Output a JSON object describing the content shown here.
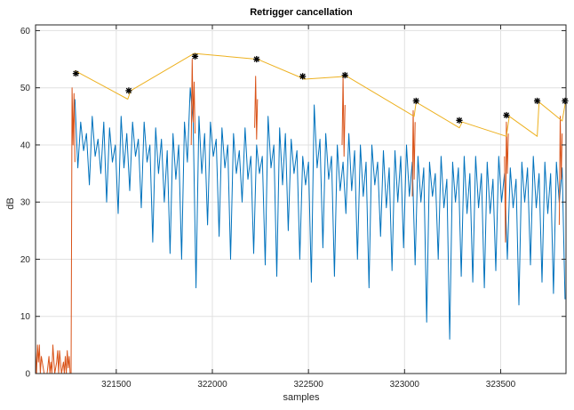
{
  "chart_data": {
    "type": "line",
    "title": "Retrigger cancellation",
    "xlabel": "samples",
    "ylabel": "dB",
    "xlim": [
      321080,
      323840
    ],
    "ylim": [
      0,
      61
    ],
    "xticks": [
      321500,
      322000,
      322500,
      323000,
      323500
    ],
    "xtick_labels": [
      "321500",
      "322000",
      "322500",
      "323000",
      "323500"
    ],
    "yticks": [
      0,
      10,
      20,
      30,
      40,
      50,
      60
    ],
    "ytick_labels": [
      "0",
      "10",
      "20",
      "30",
      "40",
      "50",
      "60"
    ],
    "grid": true,
    "colors": {
      "signal": "#0072bd",
      "triggered": "#d95319",
      "envelope": "#edb120",
      "markers": "#000000",
      "grid": "#e0e0e0",
      "axes": "#262626"
    },
    "series": [
      {
        "role": "signal",
        "x": [
          321285,
          321300,
          321315,
          321330,
          321345,
          321360,
          321375,
          321390,
          321405,
          321420,
          321435,
          321450,
          321465,
          321480,
          321495,
          321510,
          321525,
          321540,
          321555,
          321570,
          321585,
          321600,
          321615,
          321630,
          321645,
          321660,
          321675,
          321690,
          321705,
          321720,
          321735,
          321750,
          321765,
          321780,
          321795,
          321810,
          321825,
          321840,
          321855,
          321870,
          321885,
          321900,
          321915,
          321930,
          321945,
          321960,
          321975,
          321990,
          322005,
          322020,
          322035,
          322050,
          322065,
          322080,
          322095,
          322110,
          322125,
          322140,
          322155,
          322170,
          322185,
          322200,
          322215,
          322230,
          322245,
          322260,
          322275,
          322290,
          322305,
          322320,
          322335,
          322350,
          322365,
          322380,
          322395,
          322410,
          322425,
          322440,
          322455,
          322470,
          322485,
          322500,
          322515,
          322530,
          322545,
          322560,
          322575,
          322590,
          322605,
          322620,
          322635,
          322650,
          322665,
          322680,
          322695,
          322710,
          322725,
          322740,
          322755,
          322770,
          322785,
          322800,
          322815,
          322830,
          322845,
          322860,
          322875,
          322890,
          322905,
          322920,
          322935,
          322950,
          322965,
          322980,
          322995,
          323010,
          323025,
          323040,
          323055,
          323070,
          323085,
          323100,
          323115,
          323130,
          323145,
          323160,
          323175,
          323190,
          323205,
          323220,
          323235,
          323250,
          323265,
          323280,
          323295,
          323310,
          323325,
          323340,
          323355,
          323370,
          323385,
          323400,
          323415,
          323430,
          323445,
          323460,
          323475,
          323490,
          323505,
          323520,
          323535,
          323550,
          323565,
          323580,
          323595,
          323610,
          323625,
          323640,
          323655,
          323670,
          323685,
          323700,
          323715,
          323730,
          323745,
          323760,
          323775,
          323790,
          323805,
          323820,
          323835
        ],
        "y": [
          48,
          36,
          44,
          39,
          42,
          33,
          45,
          38,
          41,
          35,
          44,
          30,
          43,
          37,
          40,
          28,
          45,
          36,
          42,
          32,
          44,
          38,
          41,
          29,
          44,
          37,
          40,
          23,
          43,
          35,
          41,
          30,
          39,
          21,
          42,
          34,
          40,
          20,
          44,
          37,
          50,
          44,
          15,
          45,
          35,
          42,
          26,
          44,
          38,
          41,
          24,
          43,
          36,
          40,
          20,
          42,
          35,
          39,
          30,
          43,
          34,
          38,
          21,
          40,
          35,
          38,
          19,
          45,
          36,
          40,
          17,
          43,
          33,
          42,
          25,
          41,
          35,
          39,
          20,
          38,
          33,
          37,
          16,
          47,
          36,
          41,
          22,
          42,
          34,
          38,
          17,
          40,
          32,
          37,
          28,
          42,
          32,
          39,
          20,
          40,
          31,
          37,
          15,
          40,
          33,
          37,
          24,
          39,
          29,
          36,
          18,
          39,
          30,
          38,
          22,
          40,
          31,
          37,
          19,
          38,
          30,
          36,
          9,
          37,
          31,
          35,
          20,
          38,
          29,
          34,
          6,
          37,
          30,
          36,
          17,
          38,
          28,
          35,
          16,
          38,
          29,
          35,
          15,
          37,
          28,
          34,
          18,
          38,
          30,
          35,
          20,
          36,
          29,
          34,
          12,
          37,
          30,
          36,
          19,
          38,
          29,
          35,
          16,
          37,
          28,
          35,
          14,
          37,
          30,
          36,
          13
        ]
      },
      {
        "role": "triggered",
        "x": [
          321080,
          321085,
          321090,
          321095,
          321100,
          321105,
          321110,
          321125,
          321140,
          321150,
          321155,
          321160,
          321165,
          321170,
          321180,
          321190,
          321195,
          321200,
          321205,
          321215,
          321225,
          321230,
          321235,
          321240,
          321245,
          321250,
          321255,
          321260,
          321265,
          321270,
          321275,
          321280,
          321285
        ],
        "y": [
          4,
          0,
          5,
          2,
          5,
          0,
          3,
          0,
          0,
          3,
          0,
          2,
          0,
          5,
          0,
          2,
          4,
          0,
          4,
          0,
          2,
          0,
          3,
          0,
          4,
          1,
          3,
          0,
          0,
          50,
          40,
          49,
          37
        ]
      },
      {
        "role": "triggered",
        "x": [
          321890,
          321895,
          321900,
          321905,
          321910
        ],
        "y": [
          40,
          55,
          44,
          51,
          42
        ]
      },
      {
        "role": "triggered",
        "x": [
          322220,
          322225,
          322230,
          322235
        ],
        "y": [
          43,
          52,
          41,
          48
        ]
      },
      {
        "role": "triggered",
        "x": [
          322675,
          322680,
          322685,
          322690
        ],
        "y": [
          40,
          52,
          38,
          47
        ]
      },
      {
        "role": "triggered",
        "x": [
          323040,
          323045,
          323050,
          323055
        ],
        "y": [
          31,
          46,
          34,
          44
        ]
      },
      {
        "role": "triggered",
        "x": [
          323520,
          323525,
          323530,
          323535,
          323540
        ],
        "y": [
          38,
          23,
          44,
          35,
          42
        ]
      },
      {
        "role": "triggered",
        "x": [
          323805,
          323810,
          323815,
          323820
        ],
        "y": [
          26,
          45,
          34,
          42
        ]
      },
      {
        "role": "envelope",
        "x": [
          321285,
          321560,
          321575,
          321905,
          322235,
          322480,
          322700,
          323050,
          323060,
          323285,
          323300,
          323530,
          323545,
          323690,
          323700,
          323820,
          323840
        ],
        "y": [
          53,
          48,
          49.5,
          56,
          55,
          51.5,
          52,
          45,
          47.5,
          43,
          44,
          41.5,
          45,
          41.5,
          47.5,
          44.2,
          48
        ]
      }
    ],
    "markers": {
      "x": [
        321290,
        321565,
        321910,
        322230,
        322470,
        322690,
        323060,
        323285,
        323530,
        323690,
        323835
      ],
      "y": [
        52.5,
        49.5,
        55.5,
        55,
        52,
        52.2,
        47.7,
        44.3,
        45.2,
        47.7,
        47.7
      ]
    }
  }
}
